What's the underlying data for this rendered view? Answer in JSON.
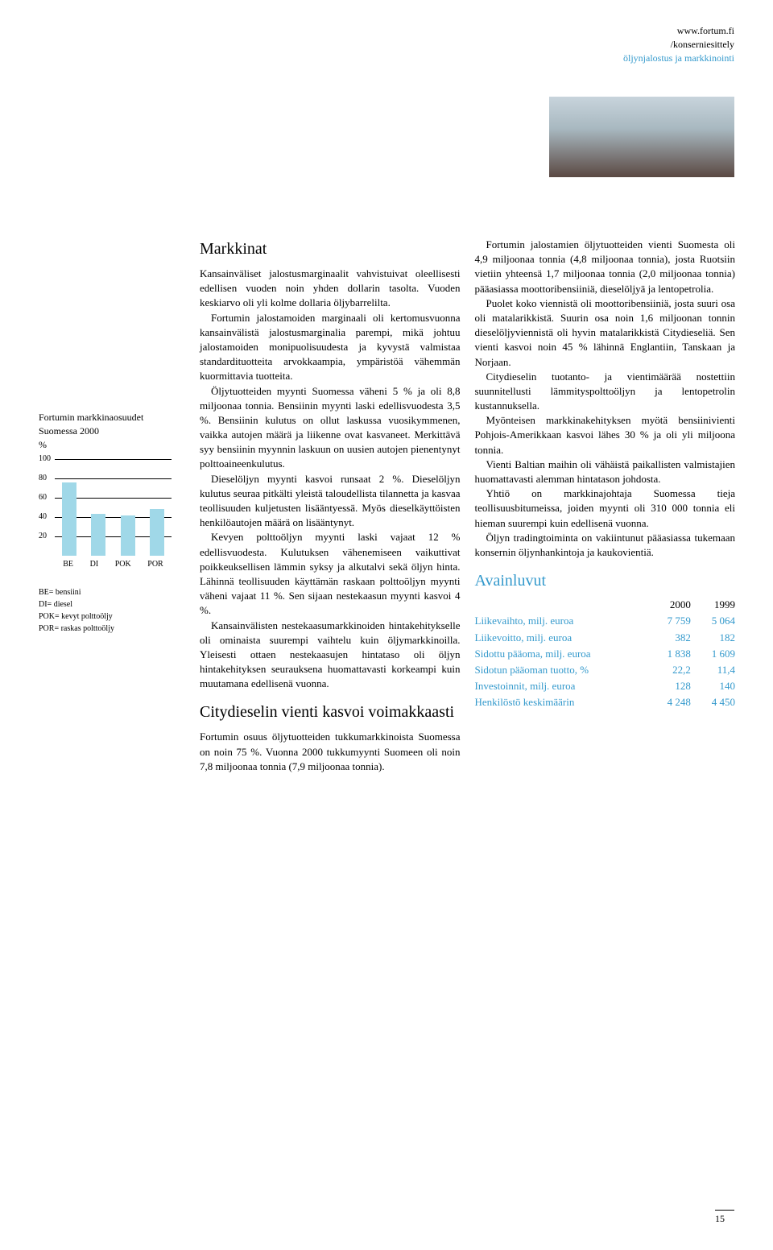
{
  "header": {
    "url": "www.fortum.fi",
    "path": "/konserniesittely",
    "section": "öljynjalostus ja markkinointi"
  },
  "headings": {
    "main": "Markkinat",
    "sub1": "Citydieselin vienti kasvoi voimakkaasti",
    "avainluvut": "Avainluvut"
  },
  "body": {
    "col1_p1": "Kansainväliset jalostusmarginaalit vahvistuivat oleellisesti edellisen vuoden noin yhden dollarin tasolta. Vuoden keskiarvo oli yli kolme dollaria öljybarrelilta.",
    "col1_p2": "Fortumin jalostamoiden marginaali oli kertomusvuonna kansainvälistä jalostusmarginalia parempi, mikä johtuu jalostamoiden monipuolisuudesta ja kyvystä valmistaa standardituotteita arvokkaampia, ympäristöä vähemmän kuormittavia tuotteita.",
    "col1_p3": "Öljytuotteiden myynti Suomessa väheni 5 % ja oli 8,8 miljoonaa tonnia. Bensiinin myynti laski edellisvuodesta 3,5 %. Bensiinin kulutus on ollut laskussa vuosikymmenen, vaikka autojen määrä ja liikenne ovat kasvaneet. Merkittävä syy bensiinin myynnin laskuun on uusien autojen pienentynyt polttoaineenkulutus.",
    "col1_p4": "Dieselöljyn myynti kasvoi runsaat 2 %. Dieselöljyn kulutus seuraa pitkälti yleistä taloudellista tilannetta ja kasvaa teollisuuden kuljetusten lisääntyessä. Myös dieselkäyttöisten henkilöautojen määrä on lisääntynyt.",
    "col1_p5": "Kevyen polttoöljyn myynti laski vajaat 12 % edellisvuodesta. Kulutuksen vähenemiseen vaikuttivat poikkeuksellisen lämmin syksy ja alkutalvi sekä öljyn hinta. Lähinnä teollisuuden käyttämän raskaan polttoöljyn myynti väheni vajaat 11 %. Sen sijaan nestekaasun myynti kasvoi 4 %.",
    "col1_p6": "Kansainvälisten nestekaasumarkkinoiden hintakehitykselle oli ominaista suurempi vaihtelu kuin öljymarkkinoilla. Yleisesti ottaen nestekaasujen hintataso oli öljyn hintakehityksen seurauksena huomattavasti korkeampi kuin muutamana edellisenä vuonna.",
    "col1_p7": "Fortumin osuus öljytuotteiden tukkumarkkinoista Suomessa on noin 75 %. Vuonna 2000 tukkumyynti Suomeen oli noin 7,8 miljoonaa tonnia (7,9 miljoonaa tonnia).",
    "col2_p1": "Fortumin jalostamien öljytuotteiden vienti Suomesta oli 4,9 miljoonaa tonnia (4,8 miljoonaa tonnia), josta Ruotsiin vietiin yhteensä 1,7 miljoonaa tonnia (2,0 miljoonaa tonnia) pääasiassa moottoribensiiniä, dieselöljyä ja lentopetrolia.",
    "col2_p2": "Puolet koko viennistä oli moottoribensiiniä, josta suuri osa oli matalarikkistä. Suurin osa noin 1,6 miljoonan tonnin dieselöljyviennistä oli hyvin matalarikkistä Citydieseliä. Sen vienti kasvoi noin 45 % lähinnä Englantiin, Tanskaan ja Norjaan.",
    "col2_p3": "Citydieselin tuotanto- ja vientimäärää nostettiin suunnitellusti lämmityspolttoöljyn ja lentopetrolin kustannuksella.",
    "col2_p4": "Myönteisen markkinakehityksen myötä bensiinivienti Pohjois-Amerikkaan kasvoi lähes 30 % ja oli yli miljoona tonnia.",
    "col2_p5": "Vienti Baltian maihin oli vähäistä paikallisten valmistajien huomattavasti alemman hintatason johdosta.",
    "col2_p6": "Yhtiö on markkinajohtaja Suomessa tieja teollisuusbitumeissa, joiden myynti oli 310 000 tonnia eli hieman suurempi kuin edellisenä vuonna.",
    "col2_p7": "Öljyn tradingtoiminta on vakiintunut pääasiassa tukemaan konsernin öljynhankintoja ja kaukovientiä."
  },
  "chart": {
    "title": "Fortumin markkinaosuudet Suomessa 2000",
    "unit": "%",
    "categories": [
      "BE",
      "DI",
      "POK",
      "POR"
    ],
    "values": [
      76,
      44,
      42,
      49
    ],
    "ylim": [
      0,
      100
    ],
    "ytick_step": 20,
    "yticks": [
      "100",
      "80",
      "60",
      "40",
      "20"
    ],
    "bar_color": "#a0d8e8",
    "gridline_color": "#000000",
    "label_fontsize": 10,
    "title_fontsize": 12,
    "legend": {
      "BE": "BE= bensiini",
      "DI": "DI= diesel",
      "POK": "POK= kevyt polttoöljy",
      "POR": "POR= raskas polttoöljy"
    }
  },
  "financial_table": {
    "years": [
      "2000",
      "1999"
    ],
    "rows": [
      {
        "label": "Liikevaihto, milj. euroa",
        "v1": "7 759",
        "v2": "5 064"
      },
      {
        "label": "Liikevoitto, milj. euroa",
        "v1": "382",
        "v2": "182"
      },
      {
        "label": "Sidottu pääoma, milj. euroa",
        "v1": "1 838",
        "v2": "1 609"
      },
      {
        "label": "Sidotun pääoman tuotto, %",
        "v1": "22,2",
        "v2": "11,4"
      },
      {
        "label": "Investoinnit, milj. euroa",
        "v1": "128",
        "v2": "140"
      },
      {
        "label": "Henkilöstö keskimäärin",
        "v1": "4 248",
        "v2": "4 450"
      }
    ]
  },
  "page_number": "15"
}
